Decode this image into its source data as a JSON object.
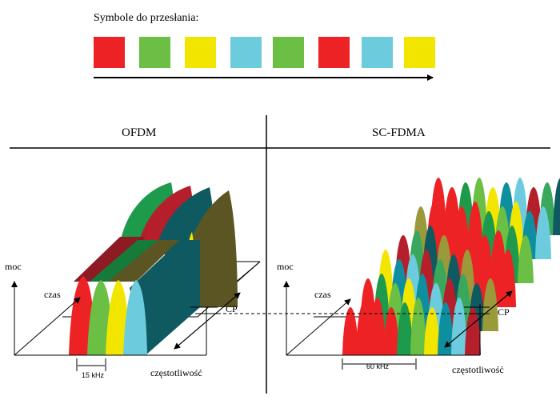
{
  "title": "Symbole do przesłania:",
  "symbols": [
    "#ed2224",
    "#6abf44",
    "#f2e600",
    "#6ccbdd",
    "#6abf44",
    "#ed2224",
    "#6ccbdd",
    "#f2e600"
  ],
  "headers": {
    "left": "OFDM",
    "right": "SC-FDMA"
  },
  "left": {
    "axis_power": "moc",
    "axis_time": "czas",
    "axis_freq": "częstotliwość",
    "cp": "CP",
    "bandwidth": "15 kHz"
  },
  "right": {
    "axis_power": "moc",
    "axis_time": "czas",
    "axis_freq": "częstotliwość",
    "cp": "CP",
    "bandwidth": "60 kHz"
  }
}
